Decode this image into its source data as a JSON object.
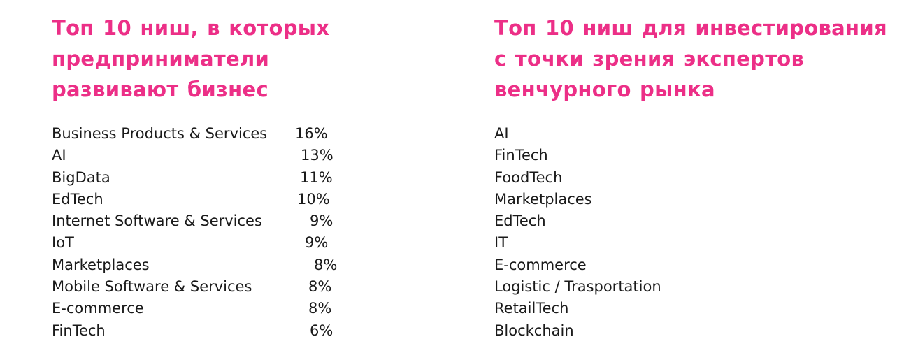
{
  "left": {
    "title_lines": [
      "Топ 10 ниш, в которых",
      "предприниматели",
      "развивают бизнес"
    ],
    "rows": [
      {
        "label": "Business Products & Services",
        "value": "16%"
      },
      {
        "label": "AI",
        "value": "13%"
      },
      {
        "label": "BigData",
        "value": "11%"
      },
      {
        "label": "EdTech",
        "value": "10%"
      },
      {
        "label": "Internet Software & Services",
        "value": "9%"
      },
      {
        "label": "IoT",
        "value": "9%"
      },
      {
        "label": "Marketplaces",
        "value": "8%"
      },
      {
        "label": "Mobile Software & Services",
        "value": "8%"
      },
      {
        "label": "E-commerce",
        "value": "8%"
      },
      {
        "label": "FinTech",
        "value": "6%"
      }
    ]
  },
  "right": {
    "title_lines": [
      "Топ 10 ниш для инвестирования",
      "с точки зрения экспертов",
      "венчурного рынка"
    ],
    "items": [
      "AI",
      "FinTech",
      "FoodTech",
      "Marketplaces",
      "EdTech",
      "IT",
      "E-commerce",
      "Logistic / Trasportation",
      "RetailTech",
      "Blockchain"
    ]
  },
  "colors": {
    "heading": "#ec2f87",
    "text": "#1a1a1a"
  }
}
